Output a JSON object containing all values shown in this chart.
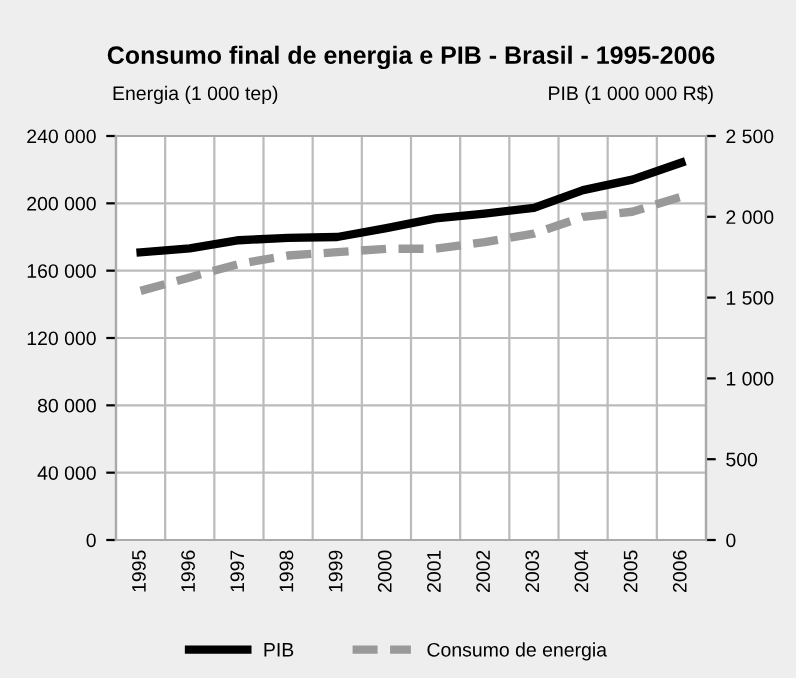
{
  "chart_data": {
    "type": "line",
    "title": "Consumo final de energia e PIB - Brasil - 1995-2006",
    "ylabel": "Energia (1 000 tep)",
    "y2label": "PIB (1 000 000 R$)",
    "categories": [
      "1995",
      "1996",
      "1997",
      "1998",
      "1999",
      "2000",
      "2001",
      "2002",
      "2003",
      "2004",
      "2005",
      "2006"
    ],
    "series": [
      {
        "name": "PIB",
        "color": "#000000",
        "axis": "y2",
        "line_style": "solid",
        "values": [
          1780,
          1805,
          1855,
          1870,
          1875,
          1930,
          1990,
          2020,
          2055,
          2165,
          2230,
          2335
        ]
      },
      {
        "name": "Consumo de energia",
        "color": "#999999",
        "axis": "y",
        "line_style": "dashed",
        "values": [
          148000,
          156000,
          164000,
          169000,
          171000,
          173000,
          173000,
          177000,
          182000,
          192000,
          195000,
          204000
        ]
      }
    ],
    "ylim": [
      0,
      240000
    ],
    "yticks": [
      {
        "value": 0,
        "label": "0"
      },
      {
        "value": 40000,
        "label": "40 000"
      },
      {
        "value": 80000,
        "label": "80 000"
      },
      {
        "value": 120000,
        "label": "120 000"
      },
      {
        "value": 160000,
        "label": "160 000"
      },
      {
        "value": 200000,
        "label": "200 000"
      },
      {
        "value": 240000,
        "label": "240 000"
      }
    ],
    "y2lim": [
      0,
      2500
    ],
    "y2ticks": [
      {
        "value": 0,
        "label": "0"
      },
      {
        "value": 500,
        "label": "500"
      },
      {
        "value": 1000,
        "label": "1 000"
      },
      {
        "value": 1500,
        "label": "1 500"
      },
      {
        "value": 2000,
        "label": "2 000"
      },
      {
        "value": 2500,
        "label": "2 500"
      }
    ],
    "grid": true,
    "legend": "bottom",
    "marker": "none"
  }
}
